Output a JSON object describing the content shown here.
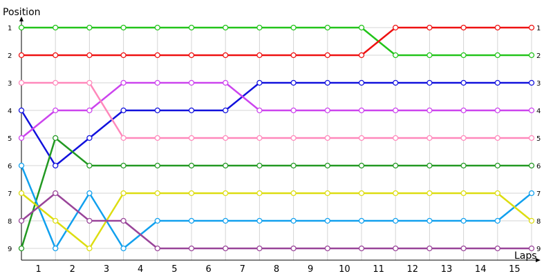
{
  "chart_data": {
    "type": "line",
    "ylabel": "Position",
    "xlabel": "Laps",
    "x_tick_labels": [
      "1",
      "2",
      "3",
      "4",
      "5",
      "6",
      "7",
      "8",
      "9",
      "10",
      "11",
      "12",
      "13",
      "14",
      "15"
    ],
    "y_tick_labels": [
      "1",
      "2",
      "3",
      "4",
      "5",
      "6",
      "7",
      "8",
      "9"
    ],
    "right_tick_labels": [
      "1",
      "2",
      "3",
      "4",
      "5",
      "6",
      "7",
      "8",
      "9"
    ],
    "x_points": [
      0,
      1,
      2,
      3,
      4,
      5,
      6,
      7,
      8,
      9,
      10,
      11,
      12,
      13,
      14,
      15
    ],
    "ylim": [
      1,
      9
    ],
    "y_inverted": true,
    "grid": true,
    "series": [
      {
        "color": "#22c41a",
        "values": [
          1,
          1,
          1,
          1,
          1,
          1,
          1,
          1,
          1,
          1,
          1,
          2,
          2,
          2,
          2,
          2
        ]
      },
      {
        "color": "#ee1111",
        "values": [
          2,
          2,
          2,
          2,
          2,
          2,
          2,
          2,
          2,
          2,
          2,
          1,
          1,
          1,
          1,
          1
        ]
      },
      {
        "color": "#1111dd",
        "values": [
          4,
          6,
          5,
          4,
          4,
          4,
          4,
          3,
          3,
          3,
          3,
          3,
          3,
          3,
          3,
          3
        ]
      },
      {
        "color": "#cc44ee",
        "values": [
          5,
          4,
          4,
          3,
          3,
          3,
          3,
          4,
          4,
          4,
          4,
          4,
          4,
          4,
          4,
          4
        ]
      },
      {
        "color": "#ff88bb",
        "values": [
          3,
          3,
          3,
          5,
          5,
          5,
          5,
          5,
          5,
          5,
          5,
          5,
          5,
          5,
          5,
          5
        ]
      },
      {
        "color": "#229922",
        "values": [
          9,
          5,
          6,
          6,
          6,
          6,
          6,
          6,
          6,
          6,
          6,
          6,
          6,
          6,
          6,
          6
        ]
      },
      {
        "color": "#11a0ee",
        "values": [
          6,
          9,
          7,
          9,
          8,
          8,
          8,
          8,
          8,
          8,
          8,
          8,
          8,
          8,
          8,
          7
        ]
      },
      {
        "color": "#dddd11",
        "values": [
          7,
          8,
          9,
          7,
          7,
          7,
          7,
          7,
          7,
          7,
          7,
          7,
          7,
          7,
          7,
          8
        ]
      },
      {
        "color": "#994499",
        "values": [
          8,
          7,
          8,
          8,
          9,
          9,
          9,
          9,
          9,
          9,
          9,
          9,
          9,
          9,
          9,
          9
        ]
      }
    ]
  }
}
